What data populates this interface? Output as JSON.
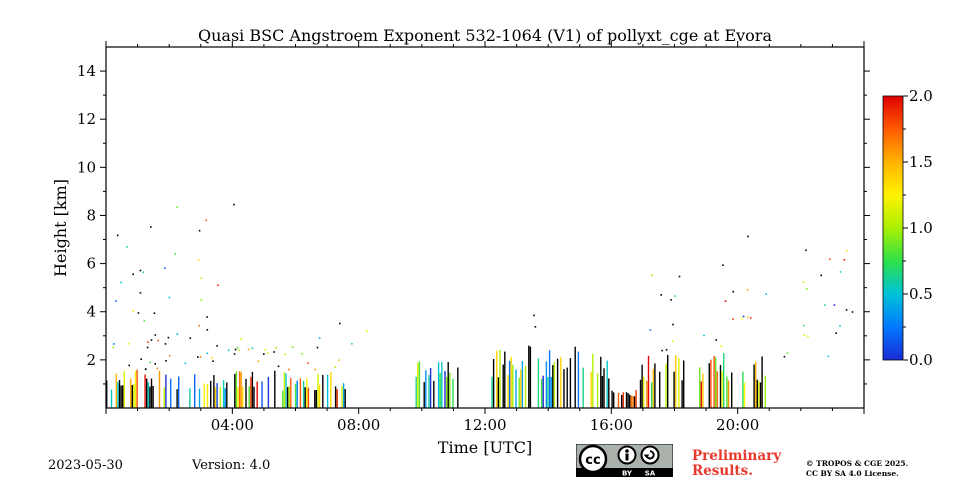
{
  "chart_data": {
    "type": "heatmap",
    "title": "Quasi BSC Angstroem Exponent 532-1064 (V1) of pollyxt_cge at Evora",
    "xlabel": "Time [UTC]",
    "ylabel": "Height [km]",
    "xlim_hours": [
      0,
      24
    ],
    "ylim_km": [
      0,
      15
    ],
    "x_ticks": [
      {
        "hour": 4,
        "label": "04:00"
      },
      {
        "hour": 8,
        "label": "08:00"
      },
      {
        "hour": 12,
        "label": "12:00"
      },
      {
        "hour": 16,
        "label": "16:00"
      },
      {
        "hour": 20,
        "label": "20:00"
      }
    ],
    "y_ticks": [
      {
        "km": 2,
        "label": "2"
      },
      {
        "km": 4,
        "label": "4"
      },
      {
        "km": 6,
        "label": "6"
      },
      {
        "km": 8,
        "label": "8"
      },
      {
        "km": 10,
        "label": "10"
      },
      {
        "km": 12,
        "label": "12"
      },
      {
        "km": 14,
        "label": "14"
      }
    ],
    "colorbar": {
      "min": 0.0,
      "max": 2.0,
      "ticks": [
        {
          "value": 0.0,
          "label": "0.0"
        },
        {
          "value": 0.5,
          "label": "0.5"
        },
        {
          "value": 1.0,
          "label": "1.0"
        },
        {
          "value": 1.5,
          "label": "1.5"
        },
        {
          "value": 2.0,
          "label": "2.0"
        }
      ],
      "colormap": [
        "#1c2ad6",
        "#0079ff",
        "#00c2d8",
        "#2ee04a",
        "#a9f000",
        "#fff200",
        "#ffb300",
        "#ff5a00",
        "#e00000"
      ]
    },
    "regions": [
      {
        "t0": 0.0,
        "t1": 3.6,
        "h0": 0.0,
        "h1": 1.6,
        "kind": "streaks",
        "vmin": 0.0,
        "vmax": 2.0
      },
      {
        "t0": 0.0,
        "t1": 3.6,
        "h0": 1.6,
        "h1": 3.2,
        "kind": "dense",
        "vmin": 0.2,
        "vmax": 1.9
      },
      {
        "t0": 0.0,
        "t1": 3.6,
        "h0": 3.2,
        "h1": 6.0,
        "kind": "sparse",
        "vmin": 0.0,
        "vmax": 2.0
      },
      {
        "t0": 0.2,
        "t1": 5.5,
        "h0": 6.0,
        "h1": 9.6,
        "kind": "rare",
        "vmin": 0.0,
        "vmax": 2.0
      },
      {
        "t0": 3.6,
        "t1": 7.6,
        "h0": 0.0,
        "h1": 1.6,
        "kind": "streaks",
        "vmin": 0.0,
        "vmax": 2.0
      },
      {
        "t0": 3.6,
        "t1": 6.9,
        "h0": 1.6,
        "h1": 3.0,
        "kind": "dense",
        "vmin": 0.4,
        "vmax": 1.8
      },
      {
        "t0": 6.9,
        "t1": 8.3,
        "h0": 1.6,
        "h1": 3.6,
        "kind": "sparse",
        "vmin": 0.0,
        "vmax": 1.8
      },
      {
        "t0": 9.8,
        "t1": 11.3,
        "h0": 0.0,
        "h1": 2.1,
        "kind": "streaks",
        "vmin": 0.0,
        "vmax": 1.2
      },
      {
        "t0": 12.2,
        "t1": 15.9,
        "h0": 0.0,
        "h1": 2.6,
        "kind": "streaks",
        "vmin": 0.0,
        "vmax": 1.4
      },
      {
        "t0": 13.3,
        "t1": 13.8,
        "h0": 2.6,
        "h1": 4.5,
        "kind": "sparse",
        "vmin": 0.3,
        "vmax": 1.2
      },
      {
        "t0": 15.9,
        "t1": 16.9,
        "h0": 0.0,
        "h1": 0.8,
        "kind": "streaks",
        "vmin": 1.6,
        "vmax": 2.0
      },
      {
        "t0": 16.9,
        "t1": 20.9,
        "h0": 0.0,
        "h1": 2.3,
        "kind": "streaks",
        "vmin": 0.6,
        "vmax": 2.0
      },
      {
        "t0": 16.9,
        "t1": 20.9,
        "h0": 2.3,
        "h1": 5.0,
        "kind": "sparse",
        "vmin": 0.0,
        "vmax": 2.0
      },
      {
        "t0": 16.8,
        "t1": 20.8,
        "h0": 5.0,
        "h1": 7.2,
        "kind": "rare",
        "vmin": 0.0,
        "vmax": 2.0
      },
      {
        "t0": 21.0,
        "t1": 21.7,
        "h0": 0.8,
        "h1": 7.0,
        "kind": "rare",
        "vmin": 0.0,
        "vmax": 2.0
      },
      {
        "t0": 22.0,
        "t1": 23.8,
        "h0": 1.4,
        "h1": 6.9,
        "kind": "sparse",
        "vmin": 0.0,
        "vmax": 2.0
      }
    ]
  },
  "footer": {
    "date": "2023-05-30",
    "version": "Version: 4.0",
    "preliminary_line1": "Preliminary",
    "preliminary_line2": "Results.",
    "copyright_line1": "© TROPOS & CGE 2025.",
    "copyright_line2": "CC BY SA 4.0 License.",
    "cc_text": "cc",
    "cc_by": "BY",
    "cc_sa": "SA"
  }
}
